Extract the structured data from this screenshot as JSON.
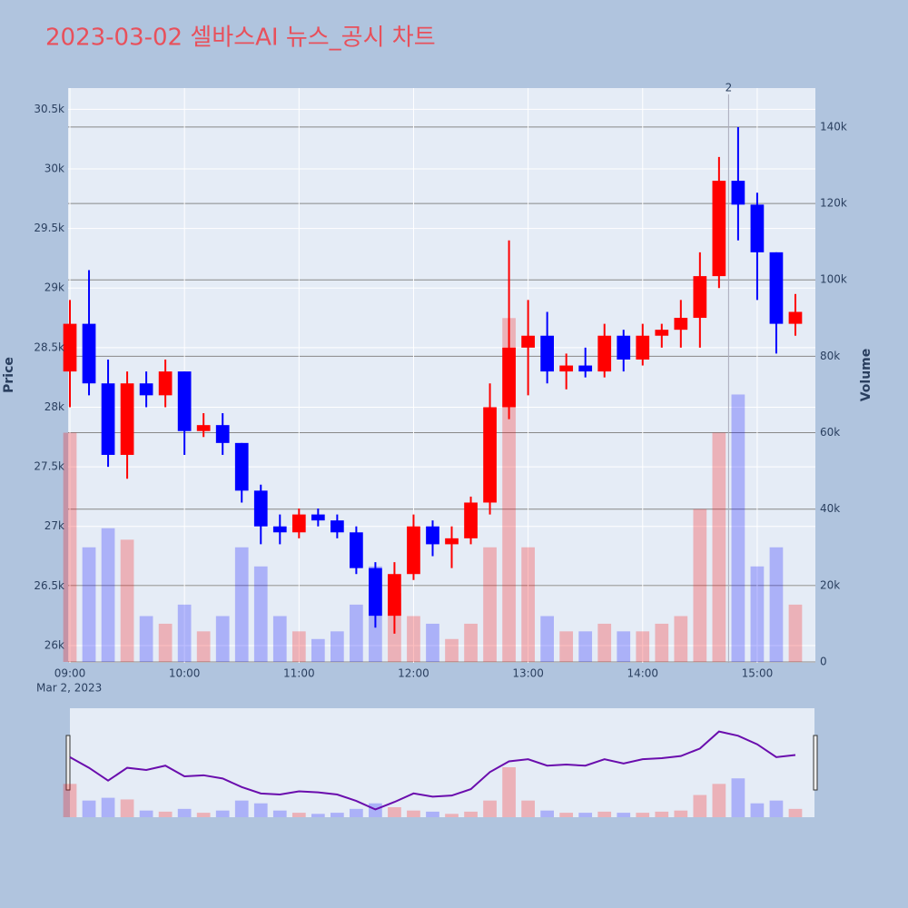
{
  "chart_data": {
    "type": "candlestick",
    "title": "2023-03-02 셀바스AI 뉴스_공시 차트",
    "x": [
      "09:00",
      "09:10",
      "09:20",
      "09:30",
      "09:40",
      "09:50",
      "10:00",
      "10:10",
      "10:20",
      "10:30",
      "10:40",
      "10:50",
      "11:00",
      "11:10",
      "11:20",
      "11:30",
      "11:40",
      "11:50",
      "12:00",
      "12:10",
      "12:20",
      "12:30",
      "12:40",
      "12:50",
      "13:00",
      "13:10",
      "13:20",
      "13:30",
      "13:40",
      "13:50",
      "14:00",
      "14:10",
      "14:20",
      "14:30",
      "14:40",
      "14:50",
      "15:00",
      "15:10",
      "15:20"
    ],
    "open": [
      28300,
      28700,
      28200,
      27600,
      28200,
      28100,
      28300,
      27800,
      27850,
      27700,
      27300,
      27000,
      26950,
      27100,
      27050,
      26950,
      26650,
      26250,
      26600,
      27000,
      26850,
      26900,
      27200,
      28000,
      28500,
      28600,
      28300,
      28350,
      28300,
      28600,
      28400,
      28600,
      28650,
      28750,
      29100,
      29900,
      29700,
      29300,
      28700
    ],
    "high": [
      28900,
      29150,
      28400,
      28300,
      28300,
      28400,
      28300,
      27950,
      27950,
      27700,
      27350,
      27100,
      27150,
      27150,
      27100,
      27000,
      26700,
      26700,
      27100,
      27050,
      27000,
      27250,
      28200,
      29400,
      28900,
      28800,
      28450,
      28500,
      28700,
      28650,
      28700,
      28700,
      28900,
      29300,
      30100,
      30350,
      29800,
      29300,
      28950
    ],
    "low": [
      28000,
      28100,
      27500,
      27400,
      28000,
      28000,
      27600,
      27750,
      27600,
      27200,
      26850,
      26850,
      26900,
      27000,
      26900,
      26600,
      26150,
      26100,
      26550,
      26750,
      26650,
      26850,
      27100,
      27900,
      28100,
      28200,
      28150,
      28250,
      28250,
      28300,
      28350,
      28500,
      28500,
      28500,
      29000,
      29400,
      28900,
      28450,
      28600
    ],
    "close": [
      28700,
      28200,
      27600,
      28200,
      28100,
      28300,
      27800,
      27850,
      27700,
      27300,
      27000,
      26950,
      27100,
      27050,
      26950,
      26650,
      26250,
      26600,
      27000,
      26850,
      26900,
      27200,
      28000,
      28500,
      28600,
      28300,
      28350,
      28300,
      28600,
      28400,
      28600,
      28650,
      28750,
      29100,
      29900,
      29700,
      29300,
      28700,
      28800
    ],
    "volume": [
      60000,
      30000,
      35000,
      32000,
      12000,
      10000,
      15000,
      8000,
      12000,
      30000,
      25000,
      12000,
      8000,
      6000,
      8000,
      15000,
      25000,
      18000,
      12000,
      10000,
      6000,
      10000,
      30000,
      90000,
      30000,
      12000,
      8000,
      8000,
      10000,
      8000,
      8000,
      10000,
      12000,
      40000,
      60000,
      70000,
      25000,
      30000,
      15000
    ],
    "up_color": "#ff0000",
    "down_color": "#0000ff",
    "xlim": [
      "09:00",
      "15:30"
    ],
    "xticks": [
      "09:00",
      "10:00",
      "11:00",
      "12:00",
      "13:00",
      "14:00",
      "15:00"
    ],
    "x_date_label": "Mar 2, 2023",
    "ylabel": "Price",
    "y2label": "Volume",
    "ylim": [
      25855,
      30678
    ],
    "yticks": [
      {
        "value": 26000,
        "label": "26k"
      },
      {
        "value": 26500,
        "label": "26.5k"
      },
      {
        "value": 27000,
        "label": "27k"
      },
      {
        "value": 27500,
        "label": "27.5k"
      },
      {
        "value": 28000,
        "label": "28k"
      },
      {
        "value": 28500,
        "label": "28.5k"
      },
      {
        "value": 29000,
        "label": "29k"
      },
      {
        "value": 29500,
        "label": "29.5k"
      },
      {
        "value": 30000,
        "label": "30k"
      },
      {
        "value": 30500,
        "label": "30.5k"
      }
    ],
    "y2lim": [
      0,
      150200
    ],
    "y2ticks": [
      0,
      {
        "value": 20000,
        "label": "20k"
      },
      {
        "value": 40000,
        "label": "40k"
      },
      {
        "value": 60000,
        "label": "60k"
      },
      {
        "value": 80000,
        "label": "80k"
      },
      {
        "value": 100000,
        "label": "100k"
      },
      {
        "value": 120000,
        "label": "120k"
      },
      {
        "value": 140000,
        "label": "140k"
      }
    ],
    "annotations": [
      {
        "x": "14:45",
        "text": "2"
      }
    ]
  }
}
